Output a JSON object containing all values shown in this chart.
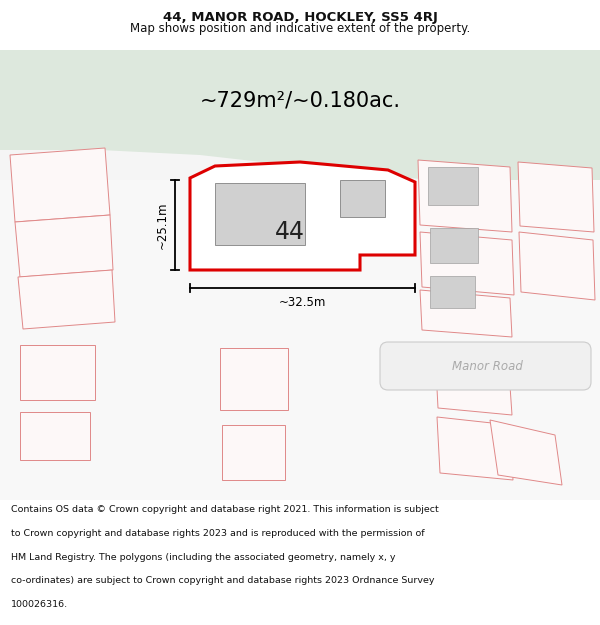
{
  "title_line1": "44, MANOR ROAD, HOCKLEY, SS5 4RJ",
  "title_line2": "Map shows position and indicative extent of the property.",
  "area_text": "~729m²/~0.180ac.",
  "label_44": "44",
  "dim_height": "~25.1m",
  "dim_width": "~32.5m",
  "road_label": "Manor Road",
  "footer_lines": [
    "Contains OS data © Crown copyright and database right 2021. This information is subject",
    "to Crown copyright and database rights 2023 and is reproduced with the permission of",
    "HM Land Registry. The polygons (including the associated geometry, namely x, y",
    "co-ordinates) are subject to Crown copyright and database rights 2023 Ordnance Survey",
    "100026316."
  ],
  "bg_green": "#dde8dd",
  "bg_white": "#ffffff",
  "bg_light": "#f5f5f5",
  "highlight_color": "#dd0000",
  "plot_fill": "#ffffff",
  "building_fill": "#d0d0d0",
  "other_plot_stroke": "#e08888",
  "other_plot_fill": "#fdf8f8",
  "road_label_color": "#aaaaaa",
  "title_color": "#111111",
  "footer_color": "#111111"
}
